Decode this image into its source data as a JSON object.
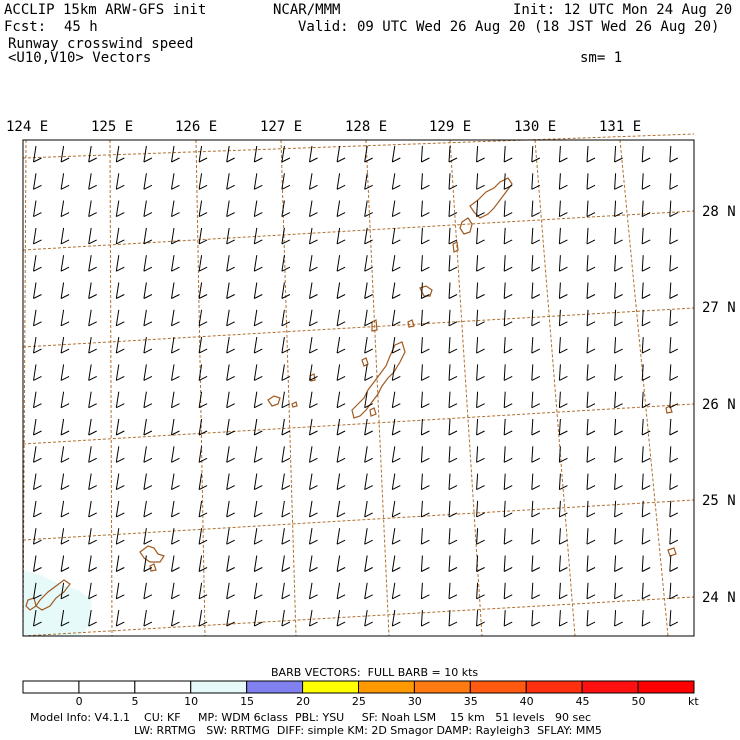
{
  "header": {
    "model": "ACCLIP 15km ARW-GFS init",
    "fcst_label": "Fcst:",
    "fcst_value": "45 h",
    "center": "NCAR/MMM",
    "init": "Init: 12 UTC Mon 24 Aug 20",
    "valid": "Valid: 09 UTC Wed 26 Aug 20 (18 JST Wed 26 Aug 20)",
    "field": "Runway crosswind speed",
    "vectors": "<U10,V10> Vectors",
    "smoothing": "sm= 1"
  },
  "map": {
    "lon_labels": [
      "124 E",
      "125 E",
      "126 E",
      "127 E",
      "128 E",
      "129 E",
      "130 E",
      "131 E"
    ],
    "lat_labels": [
      "28 N",
      "27 N",
      "26 N",
      "25 N",
      "24 N"
    ],
    "colors": {
      "grid": "#b07030",
      "coast": "#a05a20",
      "light_shade": "#e6fafa"
    }
  },
  "colorbar": {
    "title": "BARB VECTORS:  FULL BARB = 10 kts",
    "unit": "kt",
    "ticks": [
      "0",
      "5",
      "10",
      "15",
      "20",
      "25",
      "30",
      "35",
      "40",
      "45",
      "50"
    ],
    "colors": [
      "#ffffff",
      "#ffffff",
      "#ffffff",
      "#e6fafa",
      "#8080f0",
      "#ffff00",
      "#ff9900",
      "#ff7a10",
      "#ff5a10",
      "#ff3010",
      "#ff1010",
      "#ff0000"
    ]
  },
  "footer": {
    "line1": "Model Info: V4.1.1    CU: KF     MP: WDM 6class  PBL: YSU     SF: Noah LSM    15 km   51 levels   90 sec",
    "line2": "LW: RRTMG   SW: RRTMG  DIFF: simple KM: 2D Smagor DAMP: Rayleigh3  SFLAY: MM5"
  }
}
